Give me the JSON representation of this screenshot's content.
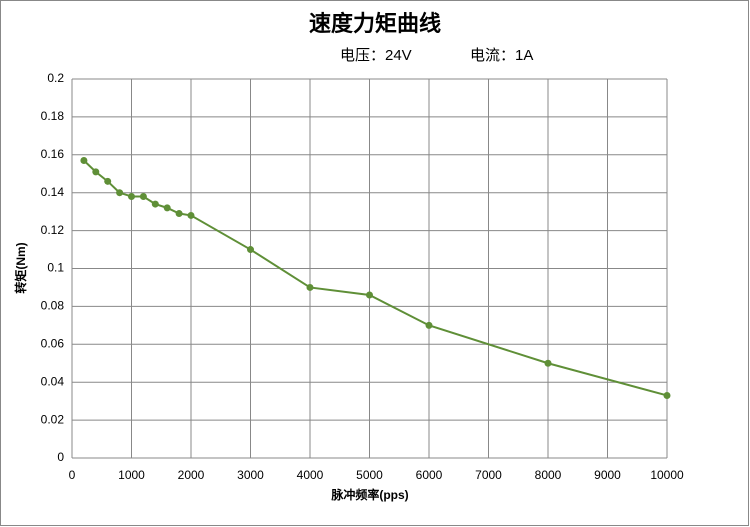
{
  "chart_data": {
    "type": "line",
    "title": "速度力矩曲线",
    "subtitle": [
      "电压：24V",
      "电流：1A"
    ],
    "x_label": "脉冲频率(pps)",
    "y_label": "转矩(Nm)",
    "x": [
      200,
      400,
      600,
      800,
      1000,
      1200,
      1400,
      1600,
      1800,
      2000,
      3000,
      4000,
      5000,
      6000,
      8000,
      10000
    ],
    "values": [
      0.157,
      0.151,
      0.146,
      0.14,
      0.138,
      0.138,
      0.134,
      0.132,
      0.129,
      0.128,
      0.11,
      0.09,
      0.086,
      0.07,
      0.05,
      0.033
    ],
    "color": "#5f8f37",
    "xlim": [
      0,
      10000
    ],
    "xticks": [
      0,
      1000,
      2000,
      3000,
      4000,
      5000,
      6000,
      7000,
      8000,
      9000,
      10000
    ],
    "ylim": [
      0,
      0.2
    ],
    "yticks": [
      0,
      0.02,
      0.04,
      0.06,
      0.08,
      0.1,
      0.12,
      0.14,
      0.16,
      0.18,
      0.2
    ],
    "grid": true
  }
}
